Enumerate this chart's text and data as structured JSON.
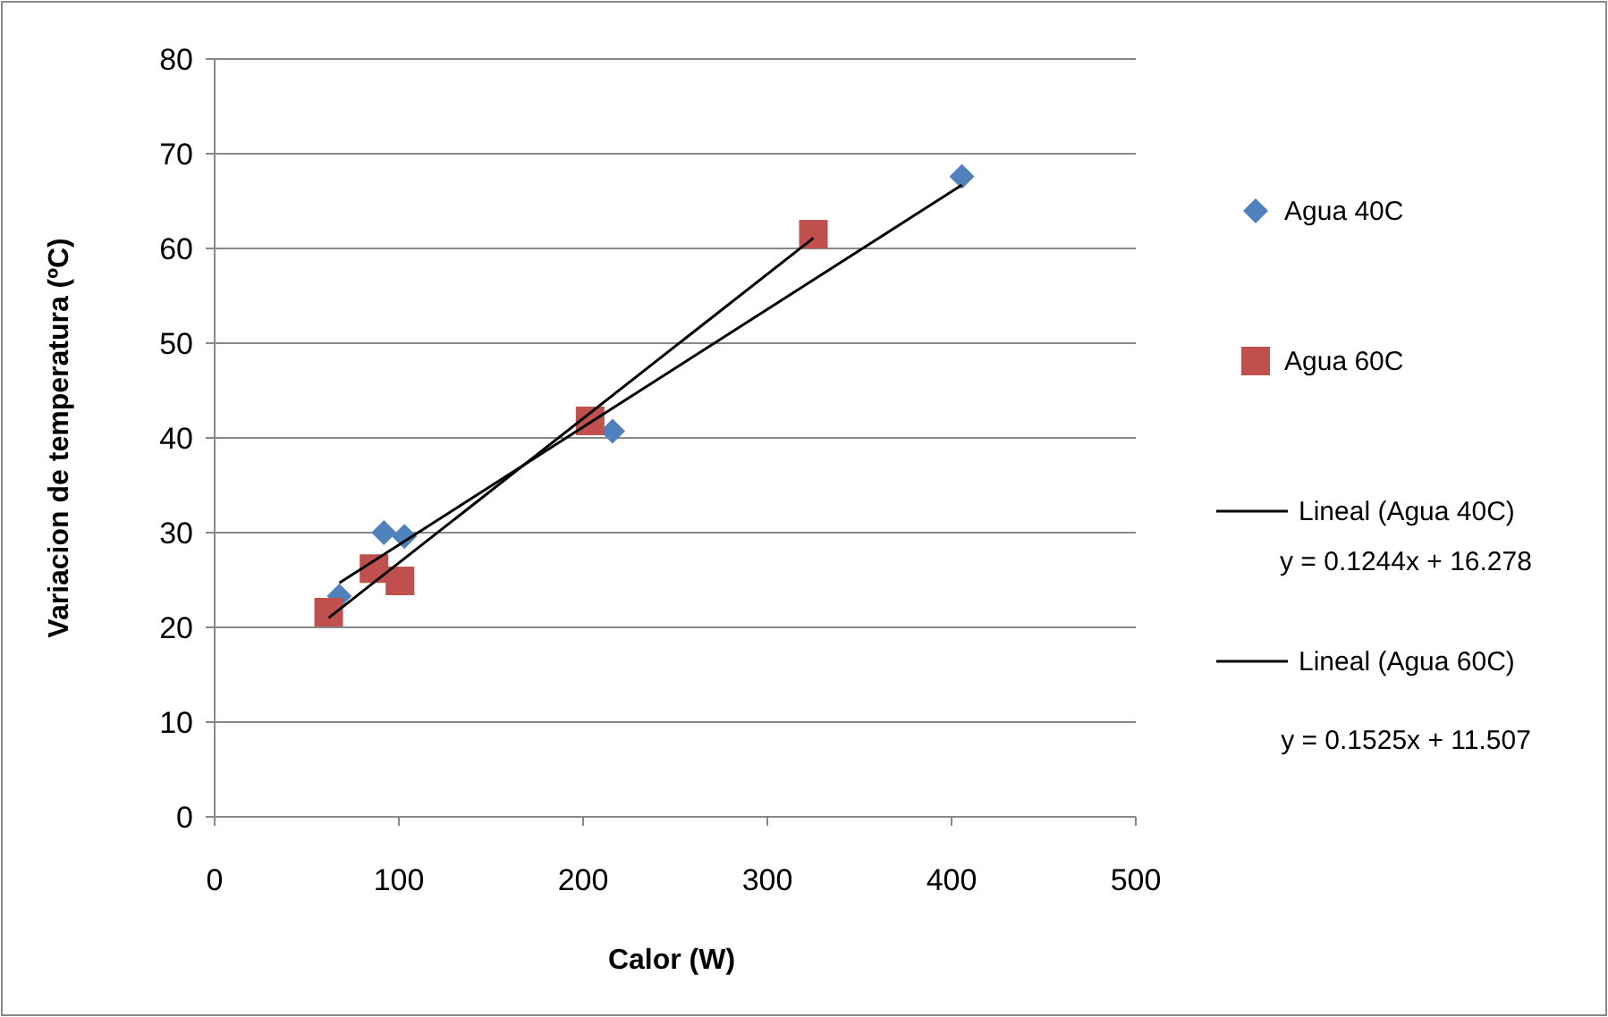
{
  "chart_data": {
    "type": "scatter",
    "xlabel": "Calor (W)",
    "ylabel": "Variacion de temperatura (ºC)",
    "xlim": [
      0,
      500
    ],
    "xticks": [
      0,
      100,
      200,
      300,
      400,
      500
    ],
    "ylim": [
      0,
      80
    ],
    "yticks": [
      0,
      10,
      20,
      30,
      40,
      50,
      60,
      70,
      80
    ],
    "grid": "y",
    "legend": "right",
    "series": [
      {
        "name": "Agua 40C",
        "marker": "diamond",
        "color": "#4f81bd",
        "x": [
          67.7,
          91.9,
          103,
          216,
          405.6
        ],
        "values": [
          23.3,
          30.0,
          29.6,
          40.7,
          67.6
        ]
      },
      {
        "name": "Agua 60C",
        "marker": "square",
        "color": "#c0504d",
        "x": [
          61.9,
          86.5,
          100.6,
          203.8,
          325
        ],
        "values": [
          21.6,
          26.2,
          24.9,
          41.8,
          61.5
        ]
      },
      {
        "name": "Lineal (Agua 40C)",
        "type": "line",
        "marker": "none",
        "color": "#000000",
        "x": [
          67.7,
          405.6
        ],
        "values": [
          24.7,
          66.7
        ]
      },
      {
        "name": "Lineal (Agua 60C)",
        "type": "line",
        "marker": "none",
        "color": "#000000",
        "x": [
          61.9,
          325
        ],
        "values": [
          21.0,
          61.1
        ]
      }
    ],
    "annotations": [
      "y = 0.1244x + 16.278",
      "y = 0.1525x + 11.507"
    ]
  }
}
